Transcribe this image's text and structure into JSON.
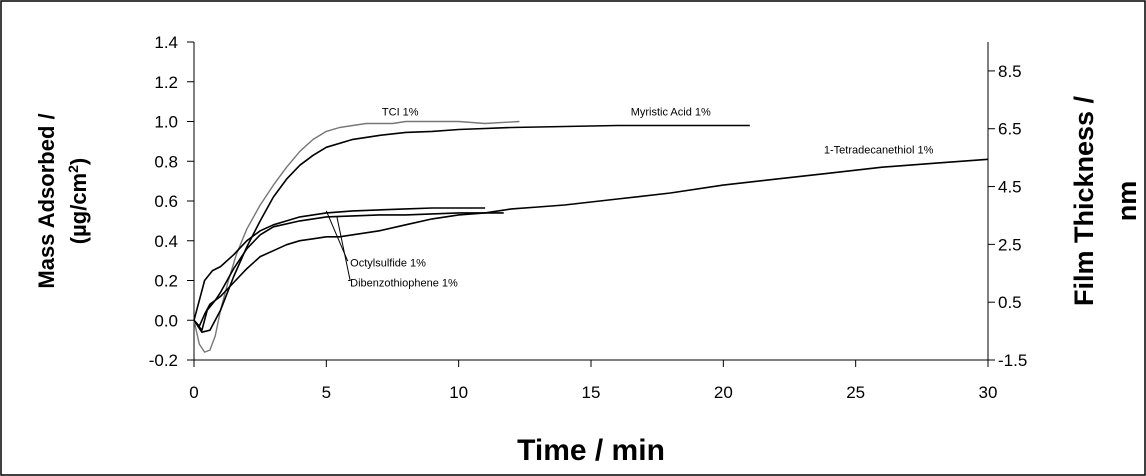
{
  "chart_data": {
    "type": "line",
    "xlabel": "Time / min",
    "ylabel_line1": "Mass Adsorbed /",
    "ylabel_line2": "(µg/cm",
    "ylabel_sup": "2",
    "ylabel_close": ")",
    "y2label_line1": "Film Thickness /",
    "y2label_line2": "nm",
    "xlim": [
      0,
      30
    ],
    "ylim": [
      -0.2,
      1.4
    ],
    "y2lim": [
      -1.5,
      9.5
    ],
    "xticks": [
      "0",
      "5",
      "10",
      "15",
      "20",
      "25",
      "30"
    ],
    "yticks": [
      "-0.2",
      "0.0",
      "0.2",
      "0.4",
      "0.6",
      "0.8",
      "1.0",
      "1.2",
      "1.4"
    ],
    "y2ticks": [
      "-1.5",
      "0.5",
      "2.5",
      "4.5",
      "6.5",
      "8.5"
    ],
    "grid": false,
    "series": [
      {
        "name": "TCI 1%",
        "color": "#777777",
        "x": [
          0,
          0.2,
          0.4,
          0.6,
          0.8,
          1.0,
          1.3,
          1.6,
          2.0,
          2.5,
          3.0,
          3.5,
          4.0,
          4.5,
          5.0,
          5.5,
          6.0,
          6.5,
          7.0,
          7.5,
          8.0,
          9.0,
          10.0,
          11.0,
          12.3
        ],
        "y": [
          0.0,
          -0.12,
          -0.16,
          -0.15,
          -0.08,
          0.05,
          0.2,
          0.33,
          0.46,
          0.58,
          0.68,
          0.77,
          0.85,
          0.91,
          0.95,
          0.97,
          0.98,
          0.99,
          0.99,
          0.99,
          1.0,
          1.0,
          1.0,
          0.99,
          1.0
        ]
      },
      {
        "name": "Myristic Acid 1%",
        "color": "#000000",
        "x": [
          0,
          0.3,
          0.6,
          1.0,
          1.5,
          2.0,
          2.5,
          3.0,
          3.5,
          4.0,
          4.5,
          5.0,
          6.0,
          7.0,
          8.0,
          9.0,
          10.0,
          12.0,
          14.0,
          16.0,
          18.0,
          21.0
        ],
        "y": [
          0.0,
          -0.06,
          -0.05,
          0.05,
          0.22,
          0.37,
          0.5,
          0.62,
          0.71,
          0.78,
          0.83,
          0.87,
          0.91,
          0.93,
          0.945,
          0.95,
          0.96,
          0.97,
          0.975,
          0.98,
          0.98,
          0.98
        ]
      },
      {
        "name": "1-Tetradecanethiol 1%",
        "color": "#000000",
        "x": [
          0,
          0.2,
          0.4,
          0.6,
          0.8,
          1.0,
          1.5,
          2.0,
          2.5,
          3.0,
          3.5,
          4.0,
          4.5,
          5.0,
          5.5,
          6.0,
          7.0,
          8.0,
          9.0,
          10.0,
          11.0,
          12.0,
          13.0,
          14.0,
          16.0,
          18.0,
          20.0,
          22.0,
          24.0,
          26.0,
          28.0,
          30.0
        ],
        "y": [
          0.0,
          -0.03,
          0.03,
          0.08,
          0.1,
          0.12,
          0.19,
          0.26,
          0.32,
          0.35,
          0.38,
          0.4,
          0.41,
          0.42,
          0.42,
          0.43,
          0.45,
          0.48,
          0.51,
          0.53,
          0.54,
          0.56,
          0.57,
          0.58,
          0.61,
          0.64,
          0.68,
          0.71,
          0.74,
          0.77,
          0.79,
          0.81
        ]
      },
      {
        "name": "Octylsulfide 1%",
        "color": "#000000",
        "x": [
          0,
          0.2,
          0.4,
          0.7,
          1.0,
          1.5,
          2.0,
          2.5,
          3.0,
          3.5,
          4.0,
          5.0,
          6.0,
          7.0,
          8.0,
          9.0,
          10.0,
          11.0
        ],
        "y": [
          0.0,
          0.1,
          0.2,
          0.25,
          0.27,
          0.33,
          0.4,
          0.45,
          0.48,
          0.5,
          0.52,
          0.54,
          0.55,
          0.555,
          0.56,
          0.565,
          0.565,
          0.565
        ]
      },
      {
        "name": "Dibenzothiophene 1%",
        "color": "#000000",
        "x": [
          0,
          0.3,
          0.5,
          0.8,
          1.0,
          1.5,
          2.0,
          2.5,
          3.0,
          4.0,
          5.0,
          6.0,
          7.0,
          8.0,
          9.0,
          10.0,
          11.0,
          11.7
        ],
        "y": [
          0.0,
          -0.05,
          0.05,
          0.1,
          0.14,
          0.26,
          0.36,
          0.43,
          0.47,
          0.5,
          0.52,
          0.525,
          0.53,
          0.53,
          0.535,
          0.54,
          0.54,
          0.54
        ]
      }
    ],
    "annotations": [
      {
        "text": "TCI 1%",
        "x": 7.1,
        "y": 1.03,
        "anchor": "start"
      },
      {
        "text": "Myristic Acid 1%",
        "x": 16.5,
        "y": 1.03,
        "anchor": "start"
      },
      {
        "text": "1-Tetradecanethiol 1%",
        "x": 23.8,
        "y": 0.84,
        "anchor": "start"
      },
      {
        "text": "Octylsulfide 1%",
        "x": 5.9,
        "y": 0.27,
        "anchor": "start"
      },
      {
        "text": "Dibenzothiophene 1%",
        "x": 5.9,
        "y": 0.17,
        "anchor": "start"
      }
    ]
  }
}
